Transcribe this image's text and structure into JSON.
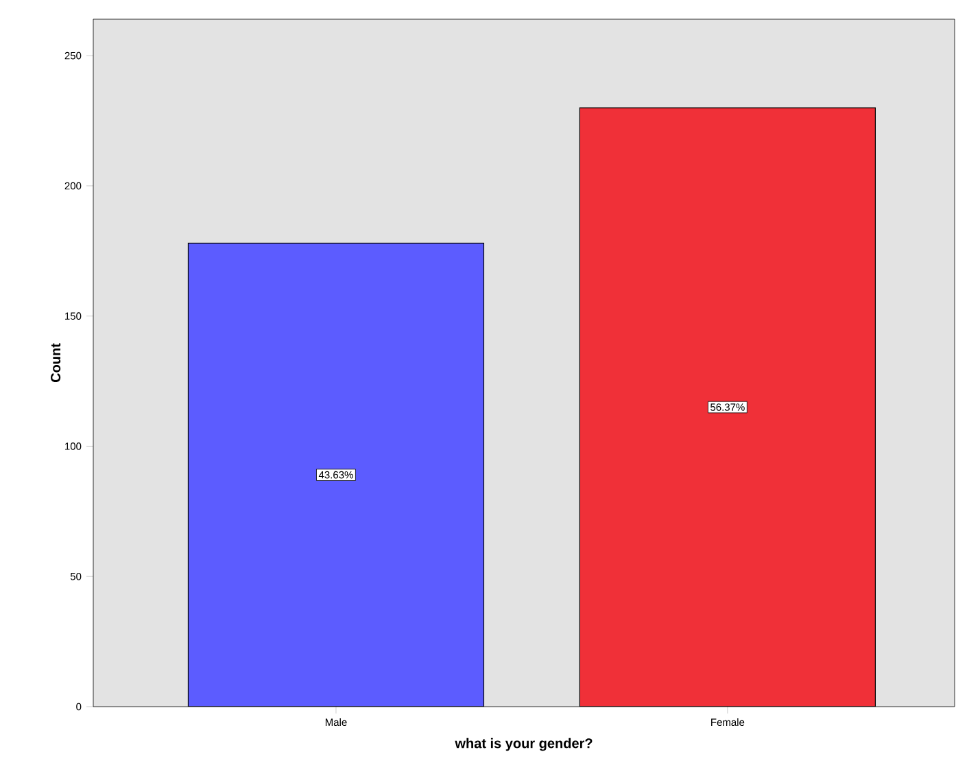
{
  "chart_data": {
    "type": "bar",
    "xlabel": "what is your gender?",
    "ylabel": "Count",
    "categories": [
      "Male",
      "Female"
    ],
    "values": [
      178,
      230
    ],
    "colors": [
      "#5c5cff",
      "#f03038"
    ],
    "annotations": [
      "43.63%",
      "56.37%"
    ],
    "ylim": [
      0,
      264
    ],
    "yticks": [
      0,
      50,
      100,
      150,
      200,
      250
    ],
    "grid": false
  }
}
